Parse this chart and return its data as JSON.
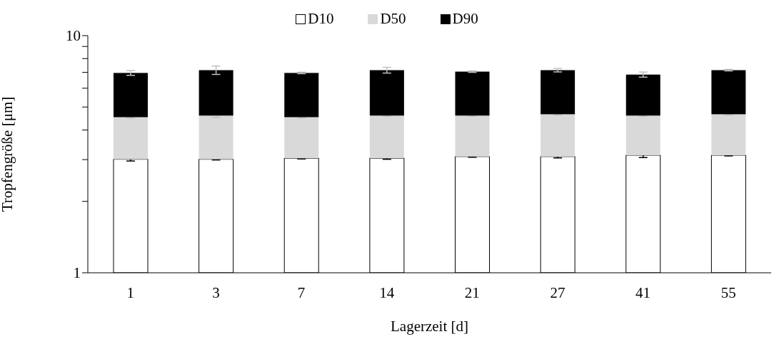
{
  "chart_data": {
    "type": "bar",
    "stacked": true,
    "log": "y",
    "xlabel": "Lagerzeit [d]",
    "ylabel": "Tropfengröße [μm]",
    "legend": "top",
    "categories": [
      "1",
      "3",
      "7",
      "14",
      "21",
      "27",
      "41",
      "55"
    ],
    "ylim": [
      1,
      10
    ],
    "yticks": [
      1,
      {
        "value": 2,
        "label": null
      },
      {
        "value": 3,
        "label": null
      },
      {
        "value": 4,
        "label": null
      },
      {
        "value": 5,
        "label": null
      },
      {
        "value": 6,
        "label": null
      },
      {
        "value": 7,
        "label": null
      },
      {
        "value": 8,
        "label": null
      },
      {
        "value": 9,
        "label": null
      },
      10
    ],
    "series": [
      {
        "name": "D10",
        "color": "#ffffff",
        "values": [
          3.01,
          3.01,
          3.04,
          3.04,
          3.09,
          3.09,
          3.13,
          3.13
        ],
        "errors": [
          0.05,
          0.02,
          0.02,
          0.03,
          0.02,
          0.04,
          0.07,
          0.02
        ]
      },
      {
        "name": "D50",
        "color": "#d9d9d9",
        "values": [
          1.52,
          1.59,
          1.49,
          1.56,
          1.51,
          1.57,
          1.47,
          1.53
        ],
        "errors": [
          0.03,
          0.08,
          0.03,
          0.03,
          0.03,
          0.03,
          0.03,
          0.03
        ]
      },
      {
        "name": "D90",
        "color": "#000000",
        "values": [
          2.43,
          2.55,
          2.43,
          2.55,
          2.45,
          2.49,
          2.25,
          2.49
        ],
        "errors": [
          0.16,
          0.29,
          0.05,
          0.2,
          0.05,
          0.12,
          0.17,
          0.05
        ]
      }
    ]
  }
}
